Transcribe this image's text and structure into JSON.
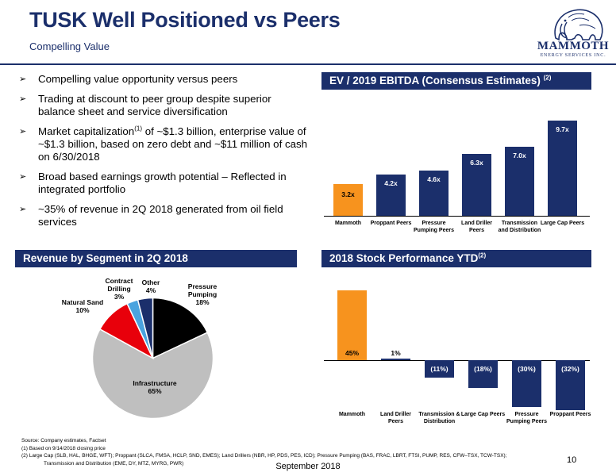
{
  "header": {
    "title": "TUSK Well Positioned vs Peers",
    "subtitle": "Compelling Value",
    "logo_text": "MAMMOTH",
    "logo_subtext": "ENERGY SERVICES INC."
  },
  "bullets": [
    {
      "text": "Compelling value opportunity versus peers"
    },
    {
      "text": "Trading at discount to peer group despite superior balance sheet and service diversification"
    },
    {
      "pre": "Market capitalization",
      "sup": "(1)",
      "post": " of ~$1.3 billion, enterprise value of ~$1.3 billion, based on zero debt and ~$11 million of cash on 6/30/2018"
    },
    {
      "text": "Broad based earnings growth potential – Reflected in integrated portfolio"
    },
    {
      "text": "~35% of revenue in 2Q 2018 generated from oil field services"
    }
  ],
  "ev_chart": {
    "title": "EV / 2019 EBITDA (Consensus Estimates)",
    "title_sup": "(2)"
  },
  "revenue_chart": {
    "title": "Revenue by Segment in 2Q 2018"
  },
  "stock_chart": {
    "title": "2018 Stock Performance YTD",
    "title_sup": "(2)"
  },
  "chart_data": [
    {
      "type": "bar",
      "title": "EV / 2019 EBITDA (Consensus Estimates) (2)",
      "categories": [
        "Mammoth",
        "Proppant Peers",
        "Pressure Pumping Peers",
        "Land Driller Peers",
        "Transmission and Distribution",
        "Large Cap Peers"
      ],
      "values": [
        3.2,
        4.2,
        4.6,
        6.3,
        7.0,
        9.7
      ],
      "labels": [
        "3.2x",
        "4.2x",
        "4.6x",
        "6.3x",
        "7.0x",
        "9.7x"
      ],
      "highlight_index": 0,
      "ylim": [
        0,
        10
      ],
      "grid": false
    },
    {
      "type": "pie",
      "title": "Revenue by Segment in 2Q 2018",
      "slices": [
        {
          "name": "Pressure Pumping",
          "value": 18,
          "label": "18%",
          "color": "#000000"
        },
        {
          "name": "Infrastructure",
          "value": 65,
          "label": "65%",
          "color": "#bfbfbf"
        },
        {
          "name": "Natural Sand",
          "value": 10,
          "label": "10%",
          "color": "#e8000b"
        },
        {
          "name": "Contract Drilling",
          "value": 3,
          "label": "3%",
          "color": "#4aa3df"
        },
        {
          "name": "Other",
          "value": 4,
          "label": "4%",
          "color": "#1b2f6b"
        }
      ]
    },
    {
      "type": "bar",
      "title": "2018 Stock Performance YTD (2)",
      "categories": [
        "Mammoth",
        "Land Driller Peers",
        "Transmission & Distribution",
        "Large Cap Peers",
        "Pressure Pumping Peers",
        "Proppant Peers"
      ],
      "values": [
        45,
        1,
        -11,
        -18,
        -30,
        -32
      ],
      "labels": [
        "45%",
        "1%",
        "(11%)",
        "(18%)",
        "(30%)",
        "(32%)"
      ],
      "highlight_index": 0,
      "ylim": [
        -35,
        50
      ],
      "grid": false
    }
  ],
  "footer": {
    "source": "Source: Company estimates, Factset",
    "note1": "(1) Based on 9/14/2018 closing price",
    "note2": "(2) Large Cap (SLB, HAL, BHGE, WFT); Proppant (SLCA, FMSA, HCLP, SND, EMES); Land Drillers (NBR, HP, PDS, PES, ICD); Pressure Pumping (BAS, FRAC, LBRT, FTSI, PUMP, RES, CFW–TSX, TCW-TSX);",
    "note2b": "Transmission and Distribution (EME, DY, MTZ, MYRG, PWR)",
    "date": "September 2018",
    "page": "10"
  },
  "colors": {
    "navy": "#1b2f6b",
    "orange": "#f7931e"
  }
}
